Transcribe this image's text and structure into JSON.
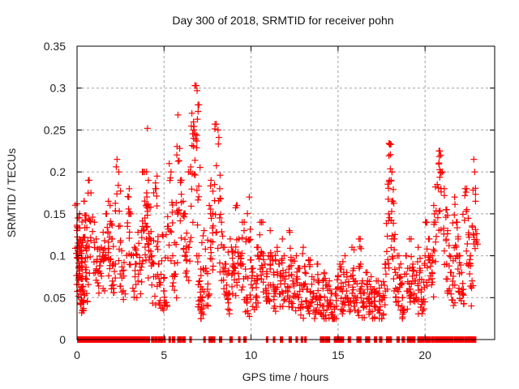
{
  "chart_data": {
    "type": "scatter",
    "title": "Day 300 of 2018, SRMTID for receiver pohn",
    "xlabel": "GPS time / hours",
    "ylabel": "SRMTID / TECUs",
    "xlim": [
      0,
      24
    ],
    "ylim": [
      0,
      0.35
    ],
    "xticks": [
      "0",
      "5",
      "10",
      "15",
      "20"
    ],
    "xtick_values": [
      0,
      5,
      10,
      15,
      20
    ],
    "yticks": [
      "0",
      "0.05",
      "0.1",
      "0.15",
      "0.2",
      "0.25",
      "0.3",
      "0.35"
    ],
    "ytick_values": [
      0,
      0.05,
      0.1,
      0.15,
      0.2,
      0.25,
      0.3,
      0.35
    ],
    "grid": true,
    "marker": "plus",
    "color": "#ff0000",
    "series": [
      {
        "name": "SRMTID",
        "points": [
          [
            0.0,
            0.162
          ],
          [
            0.05,
            0.145
          ],
          [
            0.05,
            0.133
          ],
          [
            0.1,
            0.11
          ],
          [
            0.1,
            0.098
          ],
          [
            0.1,
            0.087
          ],
          [
            0.15,
            0.15
          ],
          [
            0.2,
            0.118
          ],
          [
            0.2,
            0.105
          ],
          [
            0.25,
            0.112
          ],
          [
            0.25,
            0.093
          ],
          [
            0.3,
            0.075
          ],
          [
            0.3,
            0.06
          ],
          [
            0.35,
            0.058
          ],
          [
            0.35,
            0.063
          ],
          [
            0.4,
            0.165
          ],
          [
            0.45,
            0.122
          ],
          [
            0.45,
            0.148
          ],
          [
            0.5,
            0.142
          ],
          [
            0.55,
            0.072
          ],
          [
            0.6,
            0.098
          ],
          [
            0.7,
            0.19
          ],
          [
            0.8,
            0.175
          ],
          [
            1.0,
            0.14
          ],
          [
            1.1,
            0.12
          ],
          [
            1.2,
            0.108
          ],
          [
            1.3,
            0.088
          ],
          [
            1.4,
            0.11
          ],
          [
            1.5,
            0.128
          ],
          [
            1.6,
            0.098
          ],
          [
            1.7,
            0.15
          ],
          [
            1.8,
            0.165
          ],
          [
            1.9,
            0.16
          ],
          [
            1.9,
            0.138
          ],
          [
            2.0,
            0.12
          ],
          [
            2.1,
            0.09
          ],
          [
            2.2,
            0.09
          ],
          [
            2.3,
            0.215
          ],
          [
            2.4,
            0.2
          ],
          [
            2.5,
            0.118
          ],
          [
            2.6,
            0.082
          ],
          [
            2.7,
            0.092
          ],
          [
            2.9,
            0.135
          ],
          [
            3.0,
            0.18
          ],
          [
            3.1,
            0.15
          ],
          [
            3.3,
            0.11
          ],
          [
            3.4,
            0.09
          ],
          [
            3.5,
            0.128
          ],
          [
            3.6,
            0.098
          ],
          [
            3.7,
            0.13
          ],
          [
            3.8,
            0.2
          ],
          [
            3.9,
            0.145
          ],
          [
            4.0,
            0.175
          ],
          [
            4.05,
            0.252
          ],
          [
            4.1,
            0.19
          ],
          [
            4.15,
            0.158
          ],
          [
            4.2,
            0.12
          ],
          [
            4.3,
            0.1
          ],
          [
            4.4,
            0.075
          ],
          [
            4.5,
            0.18
          ],
          [
            4.6,
            0.195
          ],
          [
            4.7,
            0.09
          ],
          [
            4.8,
            0.068
          ],
          [
            4.9,
            0.125
          ],
          [
            5.0,
            0.058
          ],
          [
            5.1,
            0.044
          ],
          [
            5.2,
            0.135
          ],
          [
            5.3,
            0.21
          ],
          [
            5.4,
            0.2
          ],
          [
            5.5,
            0.1
          ],
          [
            5.6,
            0.078
          ],
          [
            5.7,
            0.163
          ],
          [
            5.8,
            0.268
          ],
          [
            5.9,
            0.228
          ],
          [
            6.0,
            0.19
          ],
          [
            6.1,
            0.165
          ],
          [
            6.2,
            0.15
          ],
          [
            6.3,
            0.127
          ],
          [
            6.4,
            0.11
          ],
          [
            6.5,
            0.2
          ],
          [
            6.6,
            0.27
          ],
          [
            6.7,
            0.25
          ],
          [
            6.8,
            0.245
          ],
          [
            6.85,
            0.303
          ],
          [
            6.9,
            0.297
          ],
          [
            6.95,
            0.28
          ],
          [
            7.0,
            0.1
          ],
          [
            7.05,
            0.07
          ],
          [
            7.1,
            0.05
          ],
          [
            7.15,
            0.038
          ],
          [
            7.2,
            0.06
          ],
          [
            7.3,
            0.13
          ],
          [
            7.4,
            0.085
          ],
          [
            7.5,
            0.06
          ],
          [
            7.6,
            0.16
          ],
          [
            7.7,
            0.19
          ],
          [
            7.8,
            0.15
          ],
          [
            7.9,
            0.185
          ],
          [
            8.0,
            0.257
          ],
          [
            8.1,
            0.25
          ],
          [
            8.2,
            0.18
          ],
          [
            8.3,
            0.14
          ],
          [
            8.4,
            0.11
          ],
          [
            8.5,
            0.09
          ],
          [
            8.6,
            0.065
          ],
          [
            8.7,
            0.055
          ],
          [
            8.8,
            0.12
          ],
          [
            8.9,
            0.105
          ],
          [
            9.0,
            0.09
          ],
          [
            9.1,
            0.085
          ],
          [
            9.2,
            0.16
          ],
          [
            9.3,
            0.12
          ],
          [
            9.4,
            0.1
          ],
          [
            9.5,
            0.14
          ],
          [
            9.6,
            0.13
          ],
          [
            9.7,
            0.075
          ],
          [
            9.8,
            0.05
          ],
          [
            9.9,
            0.17
          ],
          [
            10.0,
            0.095
          ],
          [
            10.1,
            0.085
          ],
          [
            10.2,
            0.07
          ],
          [
            10.3,
            0.062
          ],
          [
            10.4,
            0.11
          ],
          [
            10.5,
            0.125
          ],
          [
            10.6,
            0.14
          ],
          [
            10.7,
            0.1
          ],
          [
            10.8,
            0.09
          ],
          [
            10.9,
            0.075
          ],
          [
            11.0,
            0.065
          ],
          [
            11.1,
            0.13
          ],
          [
            11.2,
            0.1
          ],
          [
            11.3,
            0.08
          ],
          [
            11.4,
            0.06
          ],
          [
            11.5,
            0.11
          ],
          [
            11.6,
            0.09
          ],
          [
            11.7,
            0.07
          ],
          [
            11.8,
            0.12
          ],
          [
            11.9,
            0.1
          ],
          [
            12.0,
            0.08
          ],
          [
            12.1,
            0.062
          ],
          [
            12.2,
            0.13
          ],
          [
            12.3,
            0.095
          ],
          [
            12.4,
            0.07
          ],
          [
            12.5,
            0.055
          ],
          [
            12.6,
            0.1
          ],
          [
            12.7,
            0.085
          ],
          [
            12.8,
            0.065
          ],
          [
            12.9,
            0.045
          ],
          [
            13.0,
            0.11
          ],
          [
            13.1,
            0.08
          ],
          [
            13.2,
            0.06
          ],
          [
            13.3,
            0.04
          ],
          [
            13.4,
            0.095
          ],
          [
            13.5,
            0.075
          ],
          [
            13.6,
            0.055
          ],
          [
            13.7,
            0.035
          ],
          [
            13.8,
            0.09
          ],
          [
            13.9,
            0.07
          ],
          [
            14.0,
            0.05
          ],
          [
            14.1,
            0.04
          ],
          [
            14.2,
            0.08
          ],
          [
            14.3,
            0.065
          ],
          [
            14.4,
            0.045
          ],
          [
            14.5,
            0.07
          ],
          [
            14.6,
            0.055
          ],
          [
            14.7,
            0.03
          ],
          [
            14.8,
            0.025
          ],
          [
            14.9,
            0.06
          ],
          [
            15.0,
            0.075
          ],
          [
            15.1,
            0.09
          ],
          [
            15.2,
            0.06
          ],
          [
            15.3,
            0.045
          ],
          [
            15.4,
            0.1
          ],
          [
            15.5,
            0.08
          ],
          [
            15.6,
            0.065
          ],
          [
            15.7,
            0.045
          ],
          [
            15.8,
            0.11
          ],
          [
            15.9,
            0.085
          ],
          [
            16.0,
            0.07
          ],
          [
            16.1,
            0.05
          ],
          [
            16.2,
            0.12
          ],
          [
            16.3,
            0.09
          ],
          [
            16.4,
            0.07
          ],
          [
            16.5,
            0.04
          ],
          [
            16.6,
            0.08
          ],
          [
            16.7,
            0.06
          ],
          [
            16.8,
            0.045
          ],
          [
            16.9,
            0.075
          ],
          [
            17.0,
            0.06
          ],
          [
            17.1,
            0.04
          ],
          [
            17.2,
            0.07
          ],
          [
            17.3,
            0.055
          ],
          [
            17.4,
            0.035
          ],
          [
            17.5,
            0.065
          ],
          [
            17.6,
            0.05
          ],
          [
            17.7,
            0.09
          ],
          [
            17.8,
            0.105
          ],
          [
            17.9,
            0.15
          ],
          [
            17.95,
            0.234
          ],
          [
            18.0,
            0.233
          ],
          [
            18.05,
            0.19
          ],
          [
            18.1,
            0.2
          ],
          [
            18.15,
            0.165
          ],
          [
            18.2,
            0.12
          ],
          [
            18.3,
            0.08
          ],
          [
            18.4,
            0.06
          ],
          [
            18.5,
            0.1
          ],
          [
            18.6,
            0.075
          ],
          [
            18.7,
            0.05
          ],
          [
            18.8,
            0.035
          ],
          [
            18.9,
            0.1
          ],
          [
            19.0,
            0.085
          ],
          [
            19.1,
            0.06
          ],
          [
            19.2,
            0.12
          ],
          [
            19.3,
            0.09
          ],
          [
            19.4,
            0.07
          ],
          [
            19.5,
            0.05
          ],
          [
            19.6,
            0.11
          ],
          [
            19.7,
            0.085
          ],
          [
            19.8,
            0.06
          ],
          [
            19.9,
            0.045
          ],
          [
            20.0,
            0.1
          ],
          [
            20.1,
            0.14
          ],
          [
            20.2,
            0.12
          ],
          [
            20.3,
            0.1
          ],
          [
            20.4,
            0.08
          ],
          [
            20.5,
            0.16
          ],
          [
            20.6,
            0.14
          ],
          [
            20.7,
            0.185
          ],
          [
            20.8,
            0.225
          ],
          [
            20.9,
            0.22
          ],
          [
            21.0,
            0.2
          ],
          [
            21.1,
            0.18
          ],
          [
            21.2,
            0.155
          ],
          [
            21.3,
            0.13
          ],
          [
            21.4,
            0.1
          ],
          [
            21.5,
            0.08
          ],
          [
            21.6,
            0.065
          ],
          [
            21.7,
            0.17
          ],
          [
            21.8,
            0.14
          ],
          [
            21.9,
            0.12
          ],
          [
            22.0,
            0.1
          ],
          [
            22.1,
            0.08
          ],
          [
            22.2,
            0.06
          ],
          [
            22.3,
            0.18
          ],
          [
            22.4,
            0.155
          ],
          [
            22.5,
            0.125
          ],
          [
            22.6,
            0.1
          ],
          [
            22.7,
            0.07
          ],
          [
            22.8,
            0.215
          ],
          [
            22.85,
            0.2
          ],
          [
            22.9,
            0.165
          ]
        ]
      }
    ],
    "zero_marks_ranges_hours": [
      [
        0.05,
        4.15
      ],
      [
        4.3,
        4.4
      ],
      [
        4.5,
        4.6
      ],
      [
        4.7,
        4.9
      ],
      [
        5.0,
        5.05
      ],
      [
        5.3,
        5.35
      ],
      [
        5.5,
        5.6
      ],
      [
        5.8,
        6.0
      ],
      [
        6.1,
        6.2
      ],
      [
        6.5,
        6.55
      ],
      [
        7.3,
        7.35
      ],
      [
        7.6,
        7.9
      ],
      [
        8.2,
        8.3
      ],
      [
        8.8,
        8.9
      ],
      [
        9.3,
        9.35
      ],
      [
        9.6,
        9.7
      ],
      [
        10.9,
        10.95
      ],
      [
        11.3,
        11.35
      ],
      [
        11.7,
        11.8
      ],
      [
        12.2,
        12.3
      ],
      [
        12.6,
        12.65
      ],
      [
        12.9,
        12.95
      ],
      [
        13.1,
        13.15
      ],
      [
        14.0,
        14.2
      ],
      [
        14.3,
        14.5
      ],
      [
        14.8,
        14.95
      ],
      [
        15.0,
        15.3
      ],
      [
        15.6,
        15.7
      ],
      [
        16.1,
        16.3
      ],
      [
        16.6,
        16.8
      ],
      [
        17.1,
        17.2
      ],
      [
        17.4,
        17.5
      ],
      [
        17.8,
        18.05
      ],
      [
        18.4,
        18.5
      ],
      [
        18.7,
        18.8
      ],
      [
        19.0,
        19.4
      ],
      [
        19.6,
        19.9
      ],
      [
        20.0,
        20.3
      ],
      [
        20.4,
        20.5
      ],
      [
        20.6,
        21.6
      ],
      [
        21.7,
        22.2
      ],
      [
        22.3,
        22.9
      ]
    ]
  }
}
